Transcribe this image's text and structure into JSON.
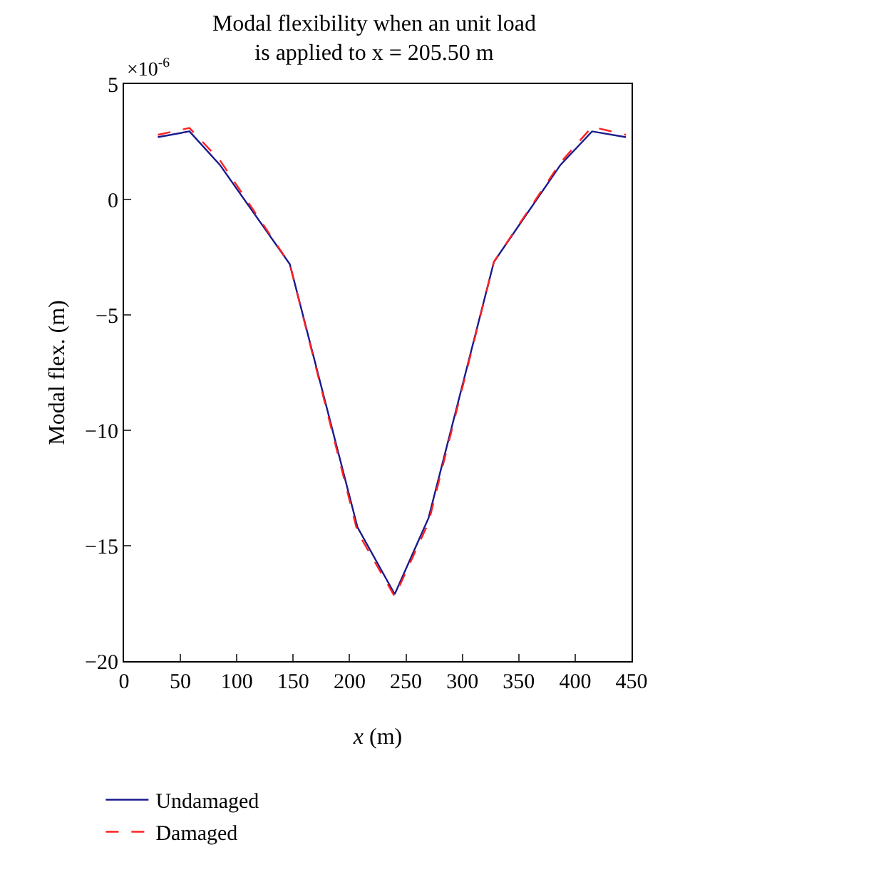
{
  "chart_data": {
    "type": "line",
    "title": "Modal flexibility when an unit load is applied to x = 205.50 m",
    "xlabel": "x (m)",
    "ylabel": "Modal flex. (m)",
    "annotations": [
      "×10$^{-6}$"
    ],
    "x": [
      30,
      58,
      85,
      147,
      207,
      240,
      270,
      328,
      387,
      415,
      445
    ],
    "series": [
      {
        "name": "Undamaged",
        "color": "#1a1a8c",
        "line_style": "solid",
        "values": [
          2.7,
          2.95,
          1.5,
          -2.8,
          -14.2,
          -17.1,
          -13.8,
          -2.7,
          1.5,
          2.95,
          2.7
        ]
      },
      {
        "name": "Damaged",
        "color": "#ff2020",
        "line_style": "dashed",
        "values": [
          2.8,
          3.1,
          1.7,
          -2.8,
          -14.4,
          -17.2,
          -14.0,
          -2.7,
          1.6,
          3.15,
          2.8
        ]
      }
    ],
    "xlim": [
      0,
      450
    ],
    "xticks": [
      0,
      50,
      100,
      150,
      200,
      250,
      300,
      350,
      400,
      450
    ],
    "ylim": [
      -20,
      5
    ],
    "yticks": [
      -20,
      -15,
      -10,
      -5,
      0,
      5
    ],
    "grid": false,
    "legend": "bottom left",
    "marker": "none"
  }
}
